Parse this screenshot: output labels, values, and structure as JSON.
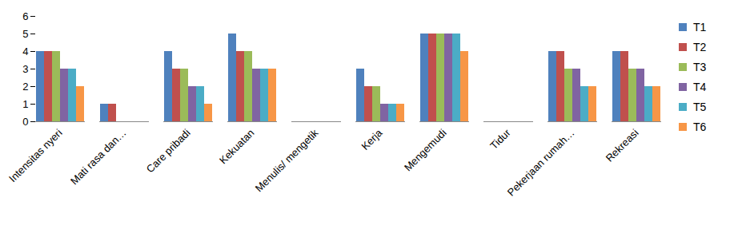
{
  "chart_data": {
    "type": "bar",
    "categories": [
      "Intensitas nyeri",
      "Mati rasa dan…",
      "Care pribadi",
      "Kekuatan",
      "Menulis/ mengetik",
      "Kerja",
      "Mengemudi",
      "Tidur",
      "Pekerjaan rumah…",
      "Rekreasi"
    ],
    "series": [
      {
        "name": "T1",
        "color": "#4f81bd",
        "values": [
          4,
          1,
          4,
          5,
          0,
          3,
          5,
          0,
          4,
          4
        ]
      },
      {
        "name": "T2",
        "color": "#c0504d",
        "values": [
          4,
          1,
          3,
          4,
          0,
          2,
          5,
          0,
          4,
          4
        ]
      },
      {
        "name": "T3",
        "color": "#9bbb59",
        "values": [
          4,
          0,
          3,
          4,
          0,
          2,
          5,
          0,
          3,
          3
        ]
      },
      {
        "name": "T4",
        "color": "#8064a2",
        "values": [
          3,
          0,
          2,
          3,
          0,
          1,
          5,
          0,
          3,
          3
        ]
      },
      {
        "name": "T5",
        "color": "#4bacc6",
        "values": [
          3,
          0,
          2,
          3,
          0,
          1,
          5,
          0,
          2,
          2
        ]
      },
      {
        "name": "T6",
        "color": "#f79646",
        "values": [
          2,
          0,
          1,
          3,
          0,
          1,
          4,
          0,
          2,
          2
        ]
      }
    ],
    "ylim": [
      0,
      6
    ],
    "yticks": [
      0,
      1,
      2,
      3,
      4,
      5,
      6
    ],
    "grid": false,
    "legend": "right"
  }
}
